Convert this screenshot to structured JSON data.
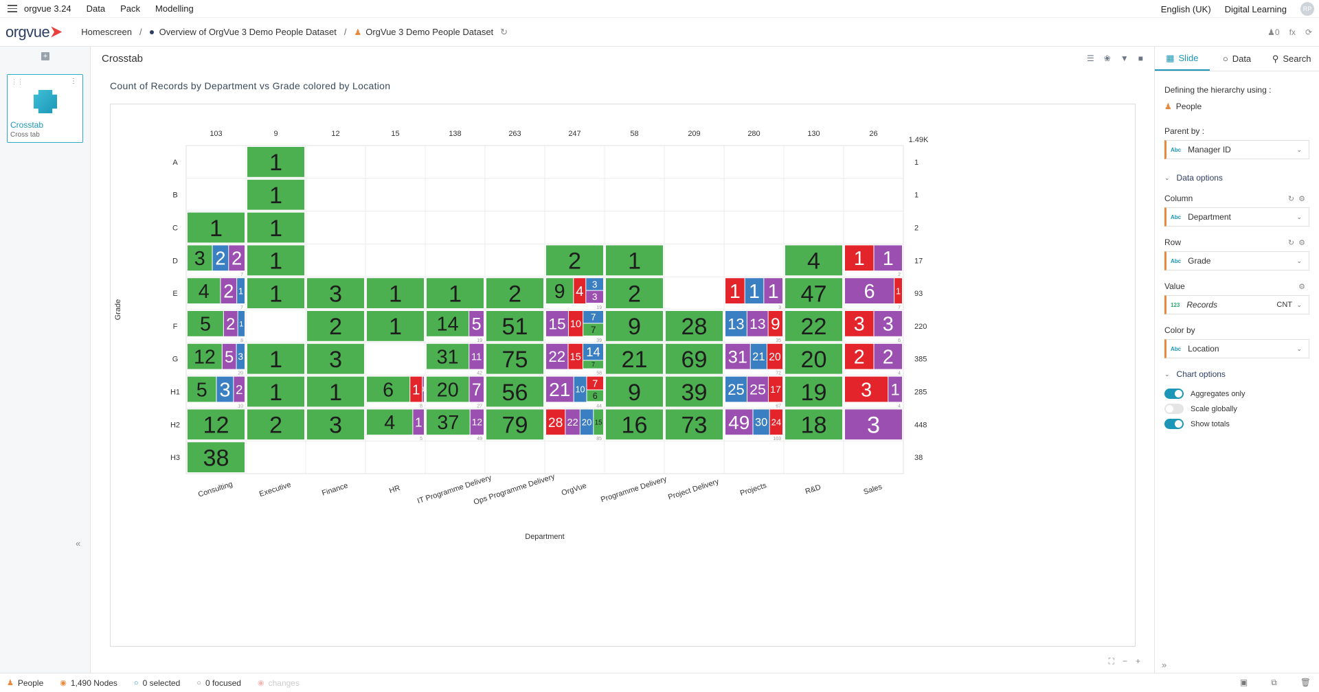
{
  "app": {
    "name": "orgvue 3.24",
    "logo_text": "orgvue",
    "user_initials": "RP"
  },
  "menu": [
    "Data",
    "Pack",
    "Modelling"
  ],
  "menu_right": {
    "language": "English (UK)",
    "account": "Digital Learning"
  },
  "breadcrumb": {
    "home": "Homescreen",
    "overview": "Overview of OrgVue 3 Demo People Dataset",
    "dataset": "OrgVue 3 Demo People Dataset"
  },
  "bread_right": {
    "count": "0",
    "fx": "fx"
  },
  "slide": {
    "title": "Crosstab",
    "subtitle": "Cross tab"
  },
  "main": {
    "title": "Crosstab"
  },
  "chart_data": {
    "type": "heatmap",
    "title": "Count of Records by Department vs Grade colored by Location",
    "xlabel": "Department",
    "ylabel": "Grade",
    "categories": [
      "Consulting",
      "Executive",
      "Finance",
      "HR",
      "IT Programme Delivery",
      "Ops Programme Delivery",
      "OrgVue",
      "Programme Delivery",
      "Project Delivery",
      "Projects",
      "R&D",
      "Sales"
    ],
    "rows": [
      "A",
      "B",
      "C",
      "D",
      "E",
      "F",
      "G",
      "H1",
      "H2",
      "H3"
    ],
    "col_totals": [
      "103",
      "9",
      "12",
      "15",
      "138",
      "263",
      "247",
      "58",
      "209",
      "280",
      "130",
      "26"
    ],
    "grand_total": "1.49K",
    "row_totals": [
      "1",
      "1",
      "2",
      "17",
      "93",
      "220",
      "385",
      "285",
      "448",
      "38"
    ],
    "colors": {
      "green": "#4caf50",
      "blue": "#3a7fc1",
      "purple": "#9b4fb0",
      "red": "#e3242b"
    },
    "cells": [
      {
        "r": 0,
        "c": 1,
        "segs": [
          {
            "v": 1,
            "k": "green"
          }
        ]
      },
      {
        "r": 1,
        "c": 1,
        "segs": [
          {
            "v": 1,
            "k": "green"
          }
        ]
      },
      {
        "r": 2,
        "c": 0,
        "segs": [
          {
            "v": 1,
            "k": "green"
          }
        ]
      },
      {
        "r": 2,
        "c": 1,
        "segs": [
          {
            "v": 1,
            "k": "green"
          }
        ]
      },
      {
        "r": 3,
        "c": 0,
        "t": "7",
        "segs": [
          {
            "v": 3,
            "k": "green"
          },
          {
            "v": 2,
            "k": "blue"
          },
          {
            "v": 2,
            "k": "purple"
          }
        ]
      },
      {
        "r": 3,
        "c": 1,
        "segs": [
          {
            "v": 1,
            "k": "green"
          }
        ]
      },
      {
        "r": 3,
        "c": 6,
        "segs": [
          {
            "v": 2,
            "k": "green"
          }
        ]
      },
      {
        "r": 3,
        "c": 7,
        "segs": [
          {
            "v": 1,
            "k": "green"
          }
        ]
      },
      {
        "r": 3,
        "c": 10,
        "segs": [
          {
            "v": 4,
            "k": "green"
          }
        ]
      },
      {
        "r": 3,
        "c": 11,
        "t": "2",
        "segs": [
          {
            "v": 1,
            "k": "red"
          },
          {
            "v": 1,
            "k": "purple"
          }
        ]
      },
      {
        "r": 4,
        "c": 0,
        "t": "7",
        "segs": [
          {
            "v": 4,
            "k": "green"
          },
          {
            "v": 2,
            "k": "purple"
          },
          {
            "v": 1,
            "k": "blue"
          }
        ]
      },
      {
        "r": 4,
        "c": 1,
        "segs": [
          {
            "v": 1,
            "k": "green"
          }
        ]
      },
      {
        "r": 4,
        "c": 2,
        "segs": [
          {
            "v": 3,
            "k": "green"
          }
        ]
      },
      {
        "r": 4,
        "c": 3,
        "segs": [
          {
            "v": 1,
            "k": "green"
          }
        ]
      },
      {
        "r": 4,
        "c": 4,
        "segs": [
          {
            "v": 1,
            "k": "green"
          }
        ]
      },
      {
        "r": 4,
        "c": 5,
        "segs": [
          {
            "v": 2,
            "k": "green"
          }
        ]
      },
      {
        "r": 4,
        "c": 6,
        "t": "19",
        "segs": [
          {
            "v": 9,
            "k": "green"
          },
          {
            "v": 4,
            "k": "red"
          },
          {
            "stack": [
              {
                "v": 3,
                "k": "blue"
              },
              {
                "v": 3,
                "k": "purple"
              }
            ]
          }
        ]
      },
      {
        "r": 4,
        "c": 7,
        "segs": [
          {
            "v": 2,
            "k": "green"
          }
        ]
      },
      {
        "r": 4,
        "c": 9,
        "t": "3",
        "segs": [
          {
            "v": 1,
            "k": "red"
          },
          {
            "v": 1,
            "k": "blue"
          },
          {
            "v": 1,
            "k": "purple"
          }
        ]
      },
      {
        "r": 4,
        "c": 10,
        "segs": [
          {
            "v": 47,
            "k": "green"
          }
        ]
      },
      {
        "r": 4,
        "c": 11,
        "t": "7",
        "segs": [
          {
            "v": 6,
            "k": "purple"
          },
          {
            "v": 1,
            "k": "red"
          }
        ]
      },
      {
        "r": 5,
        "c": 0,
        "t": "8",
        "segs": [
          {
            "v": 5,
            "k": "green"
          },
          {
            "v": 2,
            "k": "purple"
          },
          {
            "v": 1,
            "k": "blue"
          }
        ]
      },
      {
        "r": 5,
        "c": 2,
        "segs": [
          {
            "v": 2,
            "k": "green"
          }
        ]
      },
      {
        "r": 5,
        "c": 3,
        "segs": [
          {
            "v": 1,
            "k": "green"
          }
        ]
      },
      {
        "r": 5,
        "c": 4,
        "t": "19",
        "segs": [
          {
            "v": 14,
            "k": "green"
          },
          {
            "v": 5,
            "k": "purple"
          }
        ]
      },
      {
        "r": 5,
        "c": 5,
        "segs": [
          {
            "v": 51,
            "k": "green"
          }
        ]
      },
      {
        "r": 5,
        "c": 6,
        "t": "39",
        "segs": [
          {
            "v": 15,
            "k": "purple"
          },
          {
            "v": 10,
            "k": "red"
          },
          {
            "stack": [
              {
                "v": 7,
                "k": "blue"
              },
              {
                "v": 7,
                "k": "green"
              }
            ]
          }
        ]
      },
      {
        "r": 5,
        "c": 7,
        "segs": [
          {
            "v": 9,
            "k": "green"
          }
        ]
      },
      {
        "r": 5,
        "c": 8,
        "segs": [
          {
            "v": 28,
            "k": "green"
          }
        ]
      },
      {
        "r": 5,
        "c": 9,
        "t": "35",
        "segs": [
          {
            "v": 13,
            "k": "blue"
          },
          {
            "v": 13,
            "k": "purple"
          },
          {
            "v": 9,
            "k": "red"
          }
        ]
      },
      {
        "r": 5,
        "c": 10,
        "segs": [
          {
            "v": 22,
            "k": "green"
          }
        ]
      },
      {
        "r": 5,
        "c": 11,
        "t": "6",
        "segs": [
          {
            "v": 3,
            "k": "red"
          },
          {
            "v": 3,
            "k": "purple"
          }
        ]
      },
      {
        "r": 6,
        "c": 0,
        "t": "20",
        "segs": [
          {
            "v": 12,
            "k": "green"
          },
          {
            "v": 5,
            "k": "purple"
          },
          {
            "v": 3,
            "k": "blue"
          }
        ]
      },
      {
        "r": 6,
        "c": 1,
        "segs": [
          {
            "v": 1,
            "k": "green"
          }
        ]
      },
      {
        "r": 6,
        "c": 2,
        "segs": [
          {
            "v": 3,
            "k": "green"
          }
        ]
      },
      {
        "r": 6,
        "c": 4,
        "t": "42",
        "segs": [
          {
            "v": 31,
            "k": "green"
          },
          {
            "v": 11,
            "k": "purple"
          }
        ]
      },
      {
        "r": 6,
        "c": 5,
        "segs": [
          {
            "v": 75,
            "k": "green"
          }
        ]
      },
      {
        "r": 6,
        "c": 6,
        "t": "58",
        "segs": [
          {
            "v": 22,
            "k": "purple"
          },
          {
            "v": 15,
            "k": "red"
          },
          {
            "stack": [
              {
                "v": 14,
                "k": "blue"
              },
              {
                "v": 7,
                "k": "green"
              }
            ]
          }
        ]
      },
      {
        "r": 6,
        "c": 7,
        "segs": [
          {
            "v": 21,
            "k": "green"
          }
        ]
      },
      {
        "r": 6,
        "c": 8,
        "segs": [
          {
            "v": 69,
            "k": "green"
          }
        ]
      },
      {
        "r": 6,
        "c": 9,
        "t": "72",
        "segs": [
          {
            "v": 31,
            "k": "purple"
          },
          {
            "v": 21,
            "k": "blue"
          },
          {
            "v": 20,
            "k": "red"
          }
        ]
      },
      {
        "r": 6,
        "c": 10,
        "segs": [
          {
            "v": 20,
            "k": "green"
          }
        ]
      },
      {
        "r": 6,
        "c": 11,
        "t": "4",
        "segs": [
          {
            "v": 2,
            "k": "red"
          },
          {
            "v": 2,
            "k": "purple"
          }
        ]
      },
      {
        "r": 7,
        "c": 0,
        "t": "10",
        "segs": [
          {
            "v": 5,
            "k": "green"
          },
          {
            "v": 3,
            "k": "blue"
          },
          {
            "v": 2,
            "k": "purple"
          }
        ]
      },
      {
        "r": 7,
        "c": 1,
        "segs": [
          {
            "v": 1,
            "k": "green"
          }
        ]
      },
      {
        "r": 7,
        "c": 2,
        "segs": [
          {
            "v": 1,
            "k": "green"
          }
        ]
      },
      {
        "r": 7,
        "c": 3,
        "t": "8",
        "segs": [
          {
            "v": 6,
            "k": "green"
          },
          {
            "v": 1,
            "k": "red"
          },
          {
            "v": 1,
            "k": "purple"
          }
        ]
      },
      {
        "r": 7,
        "c": 4,
        "t": "27",
        "segs": [
          {
            "v": 20,
            "k": "green"
          },
          {
            "v": 7,
            "k": "purple"
          }
        ]
      },
      {
        "r": 7,
        "c": 5,
        "segs": [
          {
            "v": 56,
            "k": "green"
          }
        ]
      },
      {
        "r": 7,
        "c": 6,
        "t": "44",
        "segs": [
          {
            "v": 21,
            "k": "purple"
          },
          {
            "v": 10,
            "k": "blue"
          },
          {
            "stack": [
              {
                "v": 7,
                "k": "red"
              },
              {
                "v": 6,
                "k": "green"
              }
            ]
          }
        ]
      },
      {
        "r": 7,
        "c": 7,
        "segs": [
          {
            "v": 9,
            "k": "green"
          }
        ]
      },
      {
        "r": 7,
        "c": 8,
        "segs": [
          {
            "v": 39,
            "k": "green"
          }
        ]
      },
      {
        "r": 7,
        "c": 9,
        "t": "67",
        "segs": [
          {
            "v": 25,
            "k": "blue"
          },
          {
            "v": 25,
            "k": "purple"
          },
          {
            "v": 17,
            "k": "red"
          }
        ]
      },
      {
        "r": 7,
        "c": 10,
        "segs": [
          {
            "v": 19,
            "k": "green"
          }
        ]
      },
      {
        "r": 7,
        "c": 11,
        "t": "4",
        "segs": [
          {
            "v": 3,
            "k": "red"
          },
          {
            "v": 1,
            "k": "purple"
          }
        ]
      },
      {
        "r": 8,
        "c": 0,
        "segs": [
          {
            "v": 12,
            "k": "green"
          }
        ]
      },
      {
        "r": 8,
        "c": 1,
        "segs": [
          {
            "v": 2,
            "k": "green"
          }
        ]
      },
      {
        "r": 8,
        "c": 2,
        "segs": [
          {
            "v": 3,
            "k": "green"
          }
        ]
      },
      {
        "r": 8,
        "c": 3,
        "t": "5",
        "segs": [
          {
            "v": 4,
            "k": "green"
          },
          {
            "v": 1,
            "k": "purple"
          }
        ]
      },
      {
        "r": 8,
        "c": 4,
        "t": "49",
        "segs": [
          {
            "v": 37,
            "k": "green"
          },
          {
            "v": 12,
            "k": "purple"
          }
        ]
      },
      {
        "r": 8,
        "c": 5,
        "segs": [
          {
            "v": 79,
            "k": "green"
          }
        ]
      },
      {
        "r": 8,
        "c": 6,
        "t": "85",
        "segs": [
          {
            "v": 28,
            "k": "red"
          },
          {
            "v": 22,
            "k": "purple"
          },
          {
            "v": 20,
            "k": "blue"
          },
          {
            "v": 15,
            "k": "green"
          }
        ]
      },
      {
        "r": 8,
        "c": 7,
        "segs": [
          {
            "v": 16,
            "k": "green"
          }
        ]
      },
      {
        "r": 8,
        "c": 8,
        "segs": [
          {
            "v": 73,
            "k": "green"
          }
        ]
      },
      {
        "r": 8,
        "c": 9,
        "t": "103",
        "segs": [
          {
            "v": 49,
            "k": "purple"
          },
          {
            "v": 30,
            "k": "blue"
          },
          {
            "v": 24,
            "k": "red"
          }
        ]
      },
      {
        "r": 8,
        "c": 10,
        "segs": [
          {
            "v": 18,
            "k": "green"
          }
        ]
      },
      {
        "r": 8,
        "c": 11,
        "segs": [
          {
            "v": 3,
            "k": "purple"
          }
        ]
      },
      {
        "r": 9,
        "c": 0,
        "segs": [
          {
            "v": 38,
            "k": "green"
          }
        ]
      }
    ]
  },
  "right_panel": {
    "tabs": [
      "Slide",
      "Data",
      "Search"
    ],
    "hierarchy_label": "Defining the hierarchy using :",
    "hierarchy_value": "People",
    "parent_label": "Parent by :",
    "parent_value": "Manager ID",
    "data_options": "Data options",
    "column_label": "Column",
    "column_value": "Department",
    "row_label": "Row",
    "row_value": "Grade",
    "value_label": "Value",
    "value_value": "Records",
    "value_agg": "CNT",
    "colorby_label": "Color by",
    "colorby_value": "Location",
    "chart_options": "Chart options",
    "toggles": [
      {
        "label": "Aggregates only",
        "on": true
      },
      {
        "label": "Scale globally",
        "on": false
      },
      {
        "label": "Show totals",
        "on": true
      }
    ],
    "type_abc": "Abc",
    "type_num": "123"
  },
  "status": {
    "people": "People",
    "nodes": "1,490 Nodes",
    "selected": "0 selected",
    "focused": "0 focused",
    "changes": "changes"
  }
}
